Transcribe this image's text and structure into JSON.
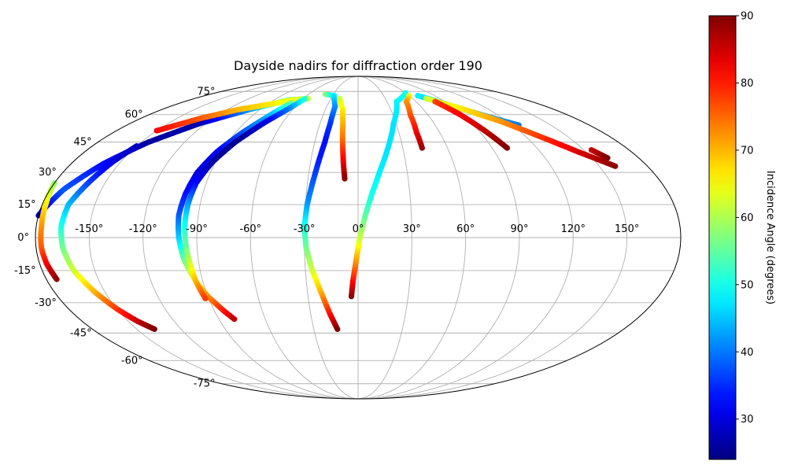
{
  "chart_data": {
    "type": "scatter",
    "projection": "mollweide",
    "title": "Dayside nadirs for diffraction order 190",
    "xlabel": "",
    "ylabel": "",
    "grid": true,
    "lon_ticks": [
      "-150°",
      "-120°",
      "-90°",
      "-60°",
      "-30°",
      "0°",
      "30°",
      "60°",
      "90°",
      "120°",
      "150°"
    ],
    "lat_ticks": [
      "75°",
      "60°",
      "45°",
      "30°",
      "15°",
      "0°",
      "-15°",
      "-30°",
      "-45°",
      "-60°",
      "-75°"
    ],
    "xlim": [
      -180,
      180
    ],
    "ylim": [
      -90,
      90
    ],
    "colorbar": {
      "label": "Incidence Angle (degrees)",
      "colormap": "jet",
      "range": [
        24,
        90
      ],
      "ticks": [
        "30",
        "40",
        "50",
        "60",
        "70",
        "80",
        "90"
      ]
    },
    "series": [
      {
        "points": [
          [
            -180,
            10,
            28
          ],
          [
            -172,
            22,
            38
          ],
          [
            -160,
            34,
            33
          ],
          [
            -145,
            45,
            26
          ],
          [
            -125,
            55,
            27
          ],
          [
            -100,
            63,
            42
          ],
          [
            -75,
            69,
            56
          ],
          [
            -55,
            70,
            58
          ]
        ]
      },
      {
        "points": [
          [
            -150,
            51,
            82
          ],
          [
            -130,
            58,
            76
          ],
          [
            -110,
            63,
            70
          ],
          [
            -90,
            66,
            67
          ],
          [
            -70,
            69,
            64
          ],
          [
            -55,
            70,
            62
          ]
        ]
      },
      {
        "points": [
          [
            -180,
            25,
            58
          ],
          [
            -178,
            15,
            66
          ],
          [
            -177,
            5,
            72
          ],
          [
            -177,
            -5,
            76
          ],
          [
            -176,
            -12,
            82
          ],
          [
            -174,
            -19,
            89
          ]
        ]
      },
      {
        "points": [
          [
            -150,
            43,
            28
          ],
          [
            -155,
            35,
            30
          ],
          [
            -160,
            25,
            36
          ],
          [
            -165,
            15,
            44
          ],
          [
            -166,
            5,
            50
          ],
          [
            -165,
            -5,
            56
          ],
          [
            -162,
            -15,
            62
          ],
          [
            -156,
            -25,
            70
          ],
          [
            -150,
            -33,
            78
          ],
          [
            -144,
            -39,
            85
          ],
          [
            -138,
            -43,
            90
          ]
        ]
      },
      {
        "points": [
          [
            -68,
            67,
            55
          ],
          [
            -75,
            60,
            45
          ],
          [
            -85,
            50,
            38
          ],
          [
            -93,
            40,
            32
          ],
          [
            -98,
            30,
            30
          ],
          [
            -100,
            20,
            33
          ],
          [
            -101,
            10,
            38
          ],
          [
            -100,
            0,
            45
          ],
          [
            -98,
            -10,
            55
          ],
          [
            -94,
            -20,
            65
          ],
          [
            -90,
            -27,
            72
          ],
          [
            -84,
            -34,
            80
          ],
          [
            -80,
            -38,
            86
          ]
        ]
      },
      {
        "points": [
          [
            -58,
            70,
            52
          ],
          [
            -65,
            63,
            40
          ],
          [
            -75,
            55,
            30
          ],
          [
            -85,
            45,
            25
          ],
          [
            -92,
            35,
            26
          ],
          [
            -96,
            25,
            32
          ],
          [
            -97,
            15,
            42
          ],
          [
            -97,
            5,
            50
          ],
          [
            -96,
            -5,
            56
          ],
          [
            -95,
            -12,
            62
          ],
          [
            -94,
            -20,
            70
          ],
          [
            -92,
            -28,
            78
          ]
        ]
      },
      {
        "points": [
          [
            -40,
            73,
            58
          ],
          [
            -28,
            72,
            48
          ],
          [
            -22,
            65,
            42
          ],
          [
            -22,
            55,
            36
          ],
          [
            -23,
            45,
            33
          ],
          [
            -25,
            35,
            34
          ],
          [
            -27,
            25,
            38
          ],
          [
            -29,
            15,
            42
          ],
          [
            -30,
            5,
            50
          ],
          [
            -29,
            -5,
            56
          ],
          [
            -26,
            -15,
            62
          ],
          [
            -22,
            -25,
            70
          ],
          [
            -18,
            -35,
            80
          ],
          [
            -14,
            -43,
            90
          ]
        ]
      },
      {
        "points": [
          [
            -20,
            70,
            62
          ],
          [
            -14,
            63,
            66
          ],
          [
            -12,
            55,
            70
          ],
          [
            -11,
            47,
            74
          ],
          [
            -10,
            40,
            79
          ],
          [
            -9,
            33,
            84
          ],
          [
            -8,
            27,
            89
          ]
        ]
      },
      {
        "points": [
          [
            -4,
            -27,
            90
          ],
          [
            -3,
            -20,
            82
          ],
          [
            -1,
            -10,
            72
          ],
          [
            1,
            0,
            62
          ],
          [
            4,
            10,
            55
          ],
          [
            8,
            20,
            50
          ],
          [
            13,
            30,
            48
          ],
          [
            20,
            42,
            47
          ],
          [
            28,
            55,
            47
          ],
          [
            40,
            68,
            48
          ],
          [
            60,
            74,
            50
          ]
        ]
      },
      {
        "points": [
          [
            60,
            72,
            65
          ],
          [
            50,
            68,
            72
          ],
          [
            45,
            60,
            76
          ],
          [
            43,
            50,
            82
          ],
          [
            43,
            42,
            88
          ]
        ]
      },
      {
        "points": [
          [
            70,
            72,
            48
          ],
          [
            80,
            69,
            46
          ],
          [
            100,
            62,
            44
          ],
          [
            115,
            57,
            42
          ],
          [
            125,
            54,
            40
          ]
        ]
      },
      {
        "points": [
          [
            75,
            70,
            62
          ],
          [
            95,
            64,
            66
          ],
          [
            115,
            56,
            72
          ],
          [
            130,
            48,
            78
          ],
          [
            145,
            40,
            84
          ],
          [
            160,
            33,
            89
          ]
        ]
      },
      {
        "points": [
          [
            80,
            68,
            78
          ],
          [
            88,
            60,
            82
          ],
          [
            95,
            50,
            86
          ],
          [
            100,
            42,
            90
          ]
        ]
      },
      {
        "points": [
          [
            155,
            41,
            85
          ],
          [
            160,
            37,
            90
          ]
        ]
      }
    ]
  }
}
